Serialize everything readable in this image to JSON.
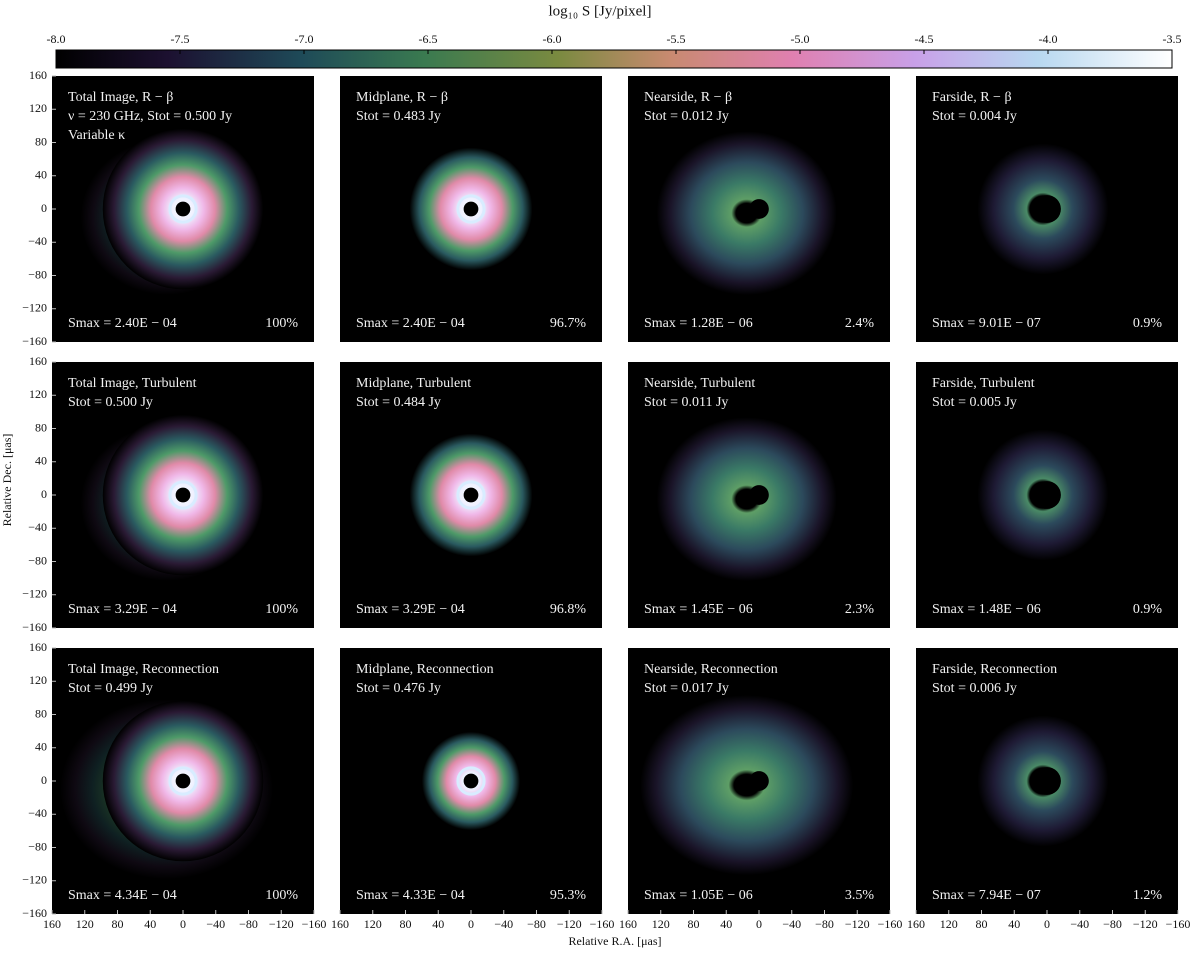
{
  "colorbar": {
    "label": "log₁₀ S [Jy/pixel]",
    "lim": [
      -8,
      -3.5
    ],
    "ticks": [
      {
        "value": -8,
        "label": "-8.0"
      },
      {
        "value": -7.5,
        "label": "-7.5"
      },
      {
        "value": -7,
        "label": "-7.0"
      },
      {
        "value": -6.5,
        "label": "-6.5"
      },
      {
        "value": -6,
        "label": "-6.0"
      },
      {
        "value": -5.5,
        "label": "-5.5"
      },
      {
        "value": -5,
        "label": "-5.0"
      },
      {
        "value": -4.5,
        "label": "-4.5"
      },
      {
        "value": -4,
        "label": "-4.0"
      },
      {
        "value": -3.5,
        "label": "-3.5"
      }
    ]
  },
  "x_axis": {
    "label": "Relative R.A. [μas]",
    "lim": [
      160,
      -160
    ],
    "ticks": [
      160,
      120,
      80,
      40,
      0,
      {
        "value": -40,
        "label": "−40"
      },
      {
        "value": -80,
        "label": "−80"
      },
      {
        "value": -120,
        "label": "−120"
      },
      {
        "value": -160,
        "label": "−160"
      }
    ]
  },
  "y_axis": {
    "label": "Relative Dec. [μas]",
    "lim": [
      -160,
      160
    ],
    "ticks": [
      160,
      120,
      80,
      40,
      0,
      {
        "value": -40,
        "label": "−40"
      },
      {
        "value": -80,
        "label": "−80"
      },
      {
        "value": -120,
        "label": "−120"
      },
      {
        "value": -160,
        "label": "−160"
      }
    ]
  },
  "rows": [
    {
      "panels": [
        {
          "title": "Total Image, R − β",
          "lines": [
            "ν = 230 GHz, Stot = 0.500 Jy",
            "Variable κ"
          ],
          "smax": "Smax = 2.40E − 04",
          "percent": "100%"
        },
        {
          "title": "Midplane, R − β",
          "lines": [
            "Stot = 0.483 Jy"
          ],
          "smax": "Smax = 2.40E − 04",
          "percent": "96.7%"
        },
        {
          "title": "Nearside, R − β",
          "lines": [
            "Stot = 0.012 Jy"
          ],
          "smax": "Smax = 1.28E − 06",
          "percent": "2.4%"
        },
        {
          "title": "Farside, R − β",
          "lines": [
            "Stot = 0.004 Jy"
          ],
          "smax": "Smax = 9.01E − 07",
          "percent": "0.9%"
        }
      ]
    },
    {
      "panels": [
        {
          "title": "Total Image, Turbulent",
          "lines": [
            "Stot = 0.500 Jy"
          ],
          "smax": "Smax = 3.29E − 04",
          "percent": "100%"
        },
        {
          "title": "Midplane, Turbulent",
          "lines": [
            "Stot = 0.484 Jy"
          ],
          "smax": "Smax = 3.29E − 04",
          "percent": "96.8%"
        },
        {
          "title": "Nearside, Turbulent",
          "lines": [
            "Stot = 0.011 Jy"
          ],
          "smax": "Smax = 1.45E − 06",
          "percent": "2.3%"
        },
        {
          "title": "Farside, Turbulent",
          "lines": [
            "Stot = 0.005 Jy"
          ],
          "smax": "Smax = 1.48E − 06",
          "percent": "0.9%"
        }
      ]
    },
    {
      "panels": [
        {
          "title": "Total Image, Reconnection",
          "lines": [
            "Stot = 0.499 Jy"
          ],
          "smax": "Smax = 4.34E − 04",
          "percent": "100%"
        },
        {
          "title": "Midplane, Reconnection",
          "lines": [
            "Stot = 0.476 Jy"
          ],
          "smax": "Smax = 4.33E − 04",
          "percent": "95.3%"
        },
        {
          "title": "Nearside, Reconnection",
          "lines": [
            "Stot = 0.017 Jy"
          ],
          "smax": "Smax = 1.05E − 06",
          "percent": "3.5%"
        },
        {
          "title": "Farside, Reconnection",
          "lines": [
            "Stot = 0.006 Jy"
          ],
          "smax": "Smax = 7.94E − 07",
          "percent": "1.2%"
        }
      ]
    }
  ]
}
